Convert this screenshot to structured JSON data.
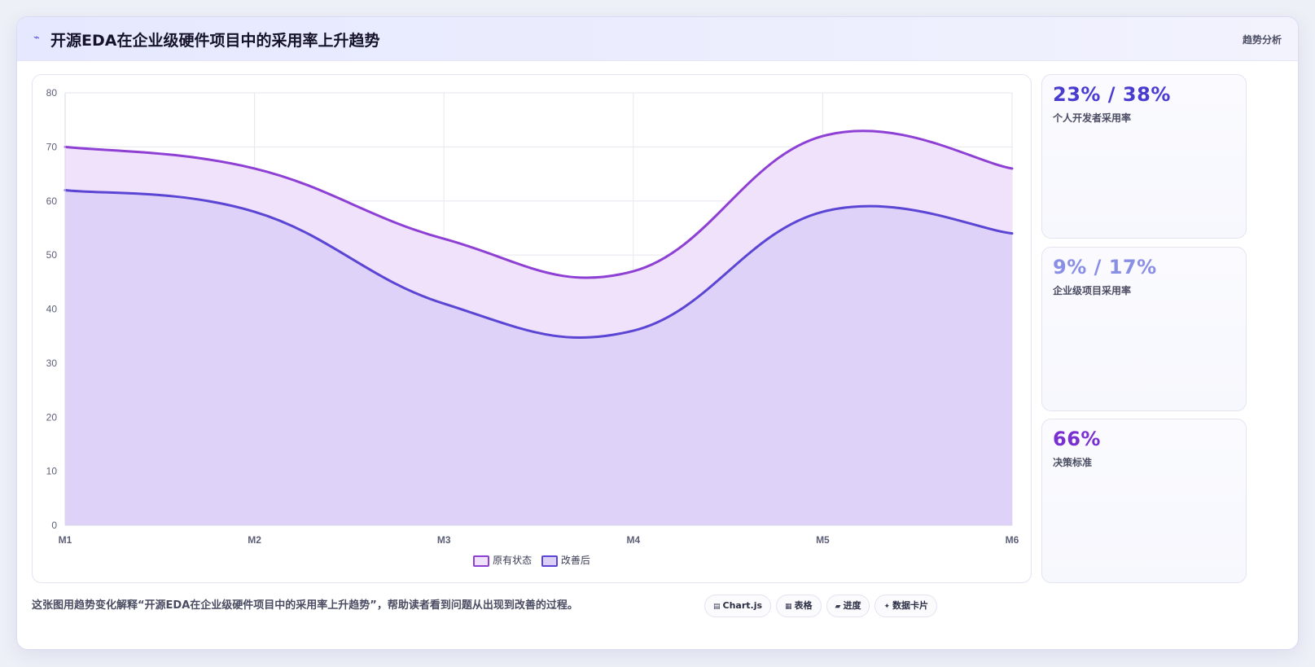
{
  "header": {
    "icon": "spark-icon",
    "title": "开源EDA在企业级硬件项目中的采用率上升趋势",
    "tag": "趋势分析"
  },
  "chart_data": {
    "type": "area",
    "title": "",
    "xlabel": "",
    "ylabel": "",
    "categories": [
      "M1",
      "M2",
      "M3",
      "M4",
      "M5",
      "M6"
    ],
    "ylim": [
      0,
      80
    ],
    "yticks": [
      0,
      10,
      20,
      30,
      40,
      50,
      60,
      70,
      80
    ],
    "grid": true,
    "legend_position": "bottom",
    "series": [
      {
        "name": "原有状态",
        "values": [
          70,
          66,
          53,
          47,
          72,
          66
        ],
        "color": "#8e3fd4",
        "fill": "#efe2fa"
      },
      {
        "name": "改善后",
        "values": [
          62,
          58,
          41,
          36,
          58,
          54
        ],
        "color": "#5b45d4",
        "fill": "#dcd0f7"
      }
    ]
  },
  "kpis": [
    {
      "value": "23% / 38%",
      "label": "个人开发者采用率",
      "color": "#4a3ccf"
    },
    {
      "value": "9% / 17%",
      "label": "企业级项目采用率",
      "color": "#8a8fe6"
    },
    {
      "value": "66%",
      "label": "决策标准",
      "color": "#7a2fd0"
    }
  ],
  "footer": {
    "description": "这张图用趋势变化解释“开源EDA在企业级硬件项目中的采用率上升趋势”，帮助读者看到问题从出现到改善的过程。",
    "pills": [
      {
        "icon": "chart-icon",
        "glyph": "▤",
        "label": "Chart.js"
      },
      {
        "icon": "table-icon",
        "glyph": "▦",
        "label": "表格"
      },
      {
        "icon": "progress-icon",
        "glyph": "▰",
        "label": "进度"
      },
      {
        "icon": "sparkle-icon",
        "glyph": "✦",
        "label": "数据卡片"
      }
    ]
  }
}
